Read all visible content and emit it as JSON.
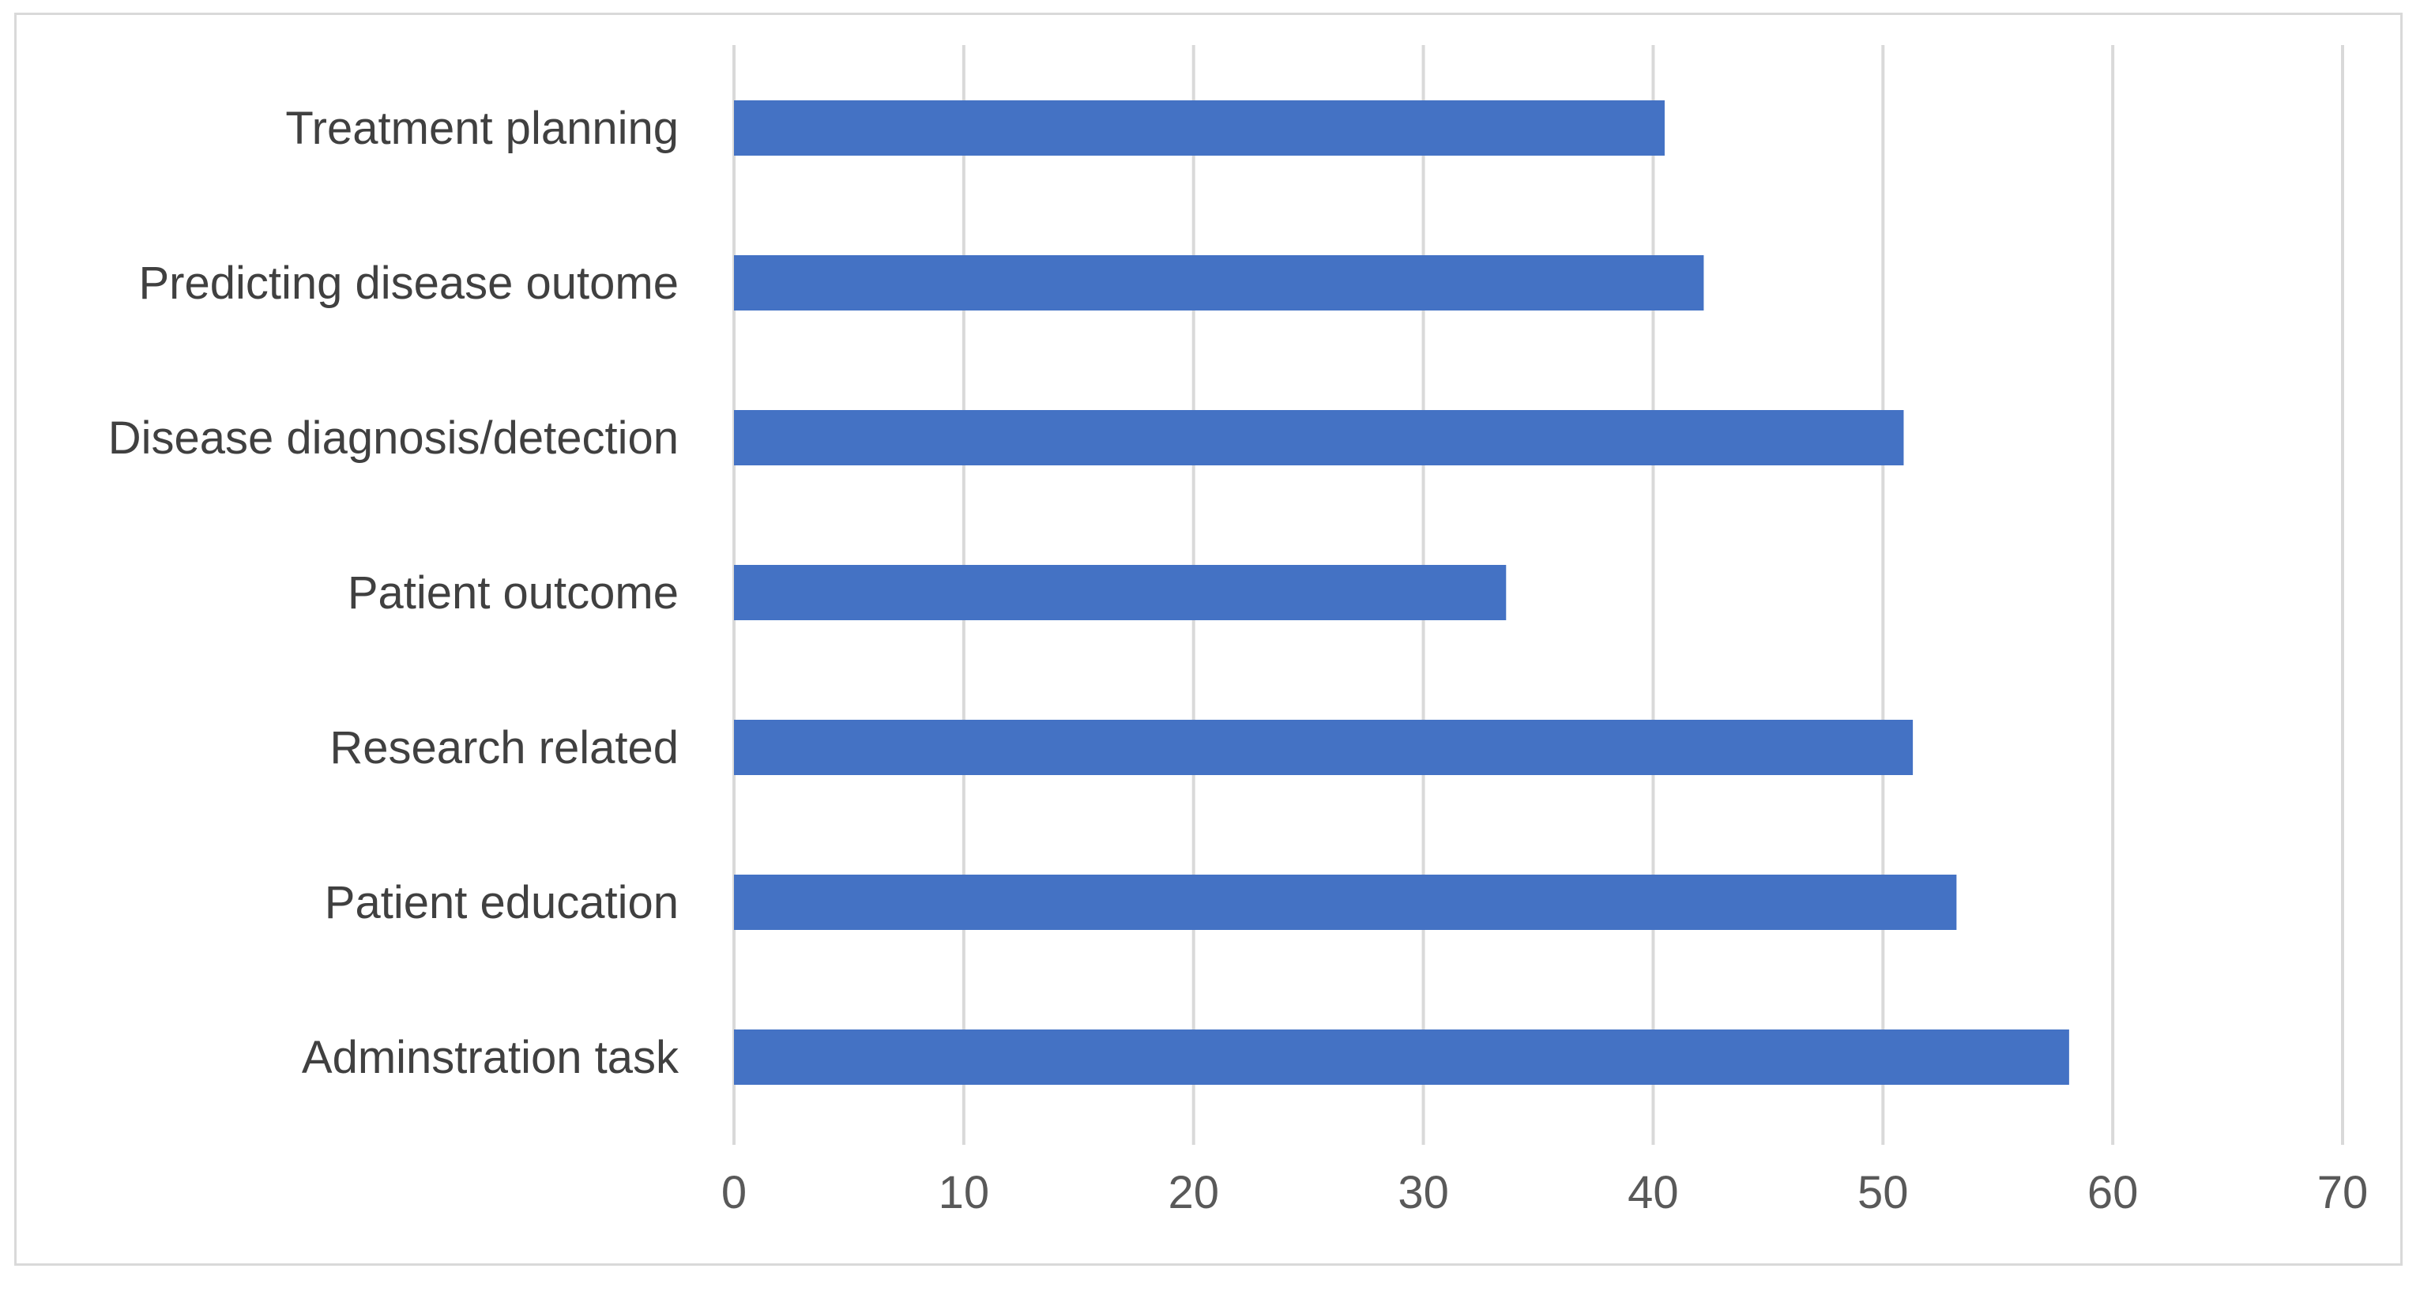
{
  "chart_data": {
    "type": "bar",
    "orientation": "horizontal",
    "categories": [
      "Treatment planning",
      "Predicting disease outome",
      "Disease diagnosis/detection",
      "Patient outcome",
      "Research related",
      "Patient education",
      "Adminstration task"
    ],
    "values": [
      40.5,
      42.2,
      50.9,
      33.6,
      51.3,
      53.2,
      58.1
    ],
    "title": "",
    "xlabel": "",
    "ylabel": "",
    "xlim": [
      0,
      70
    ],
    "x_ticks": [
      "0",
      "10",
      "20",
      "30",
      "40",
      "50",
      "60",
      "70"
    ],
    "grid": "vertical",
    "legend": "none",
    "bar_color": "#4472C4",
    "gridline_color": "#d9d9d9"
  }
}
